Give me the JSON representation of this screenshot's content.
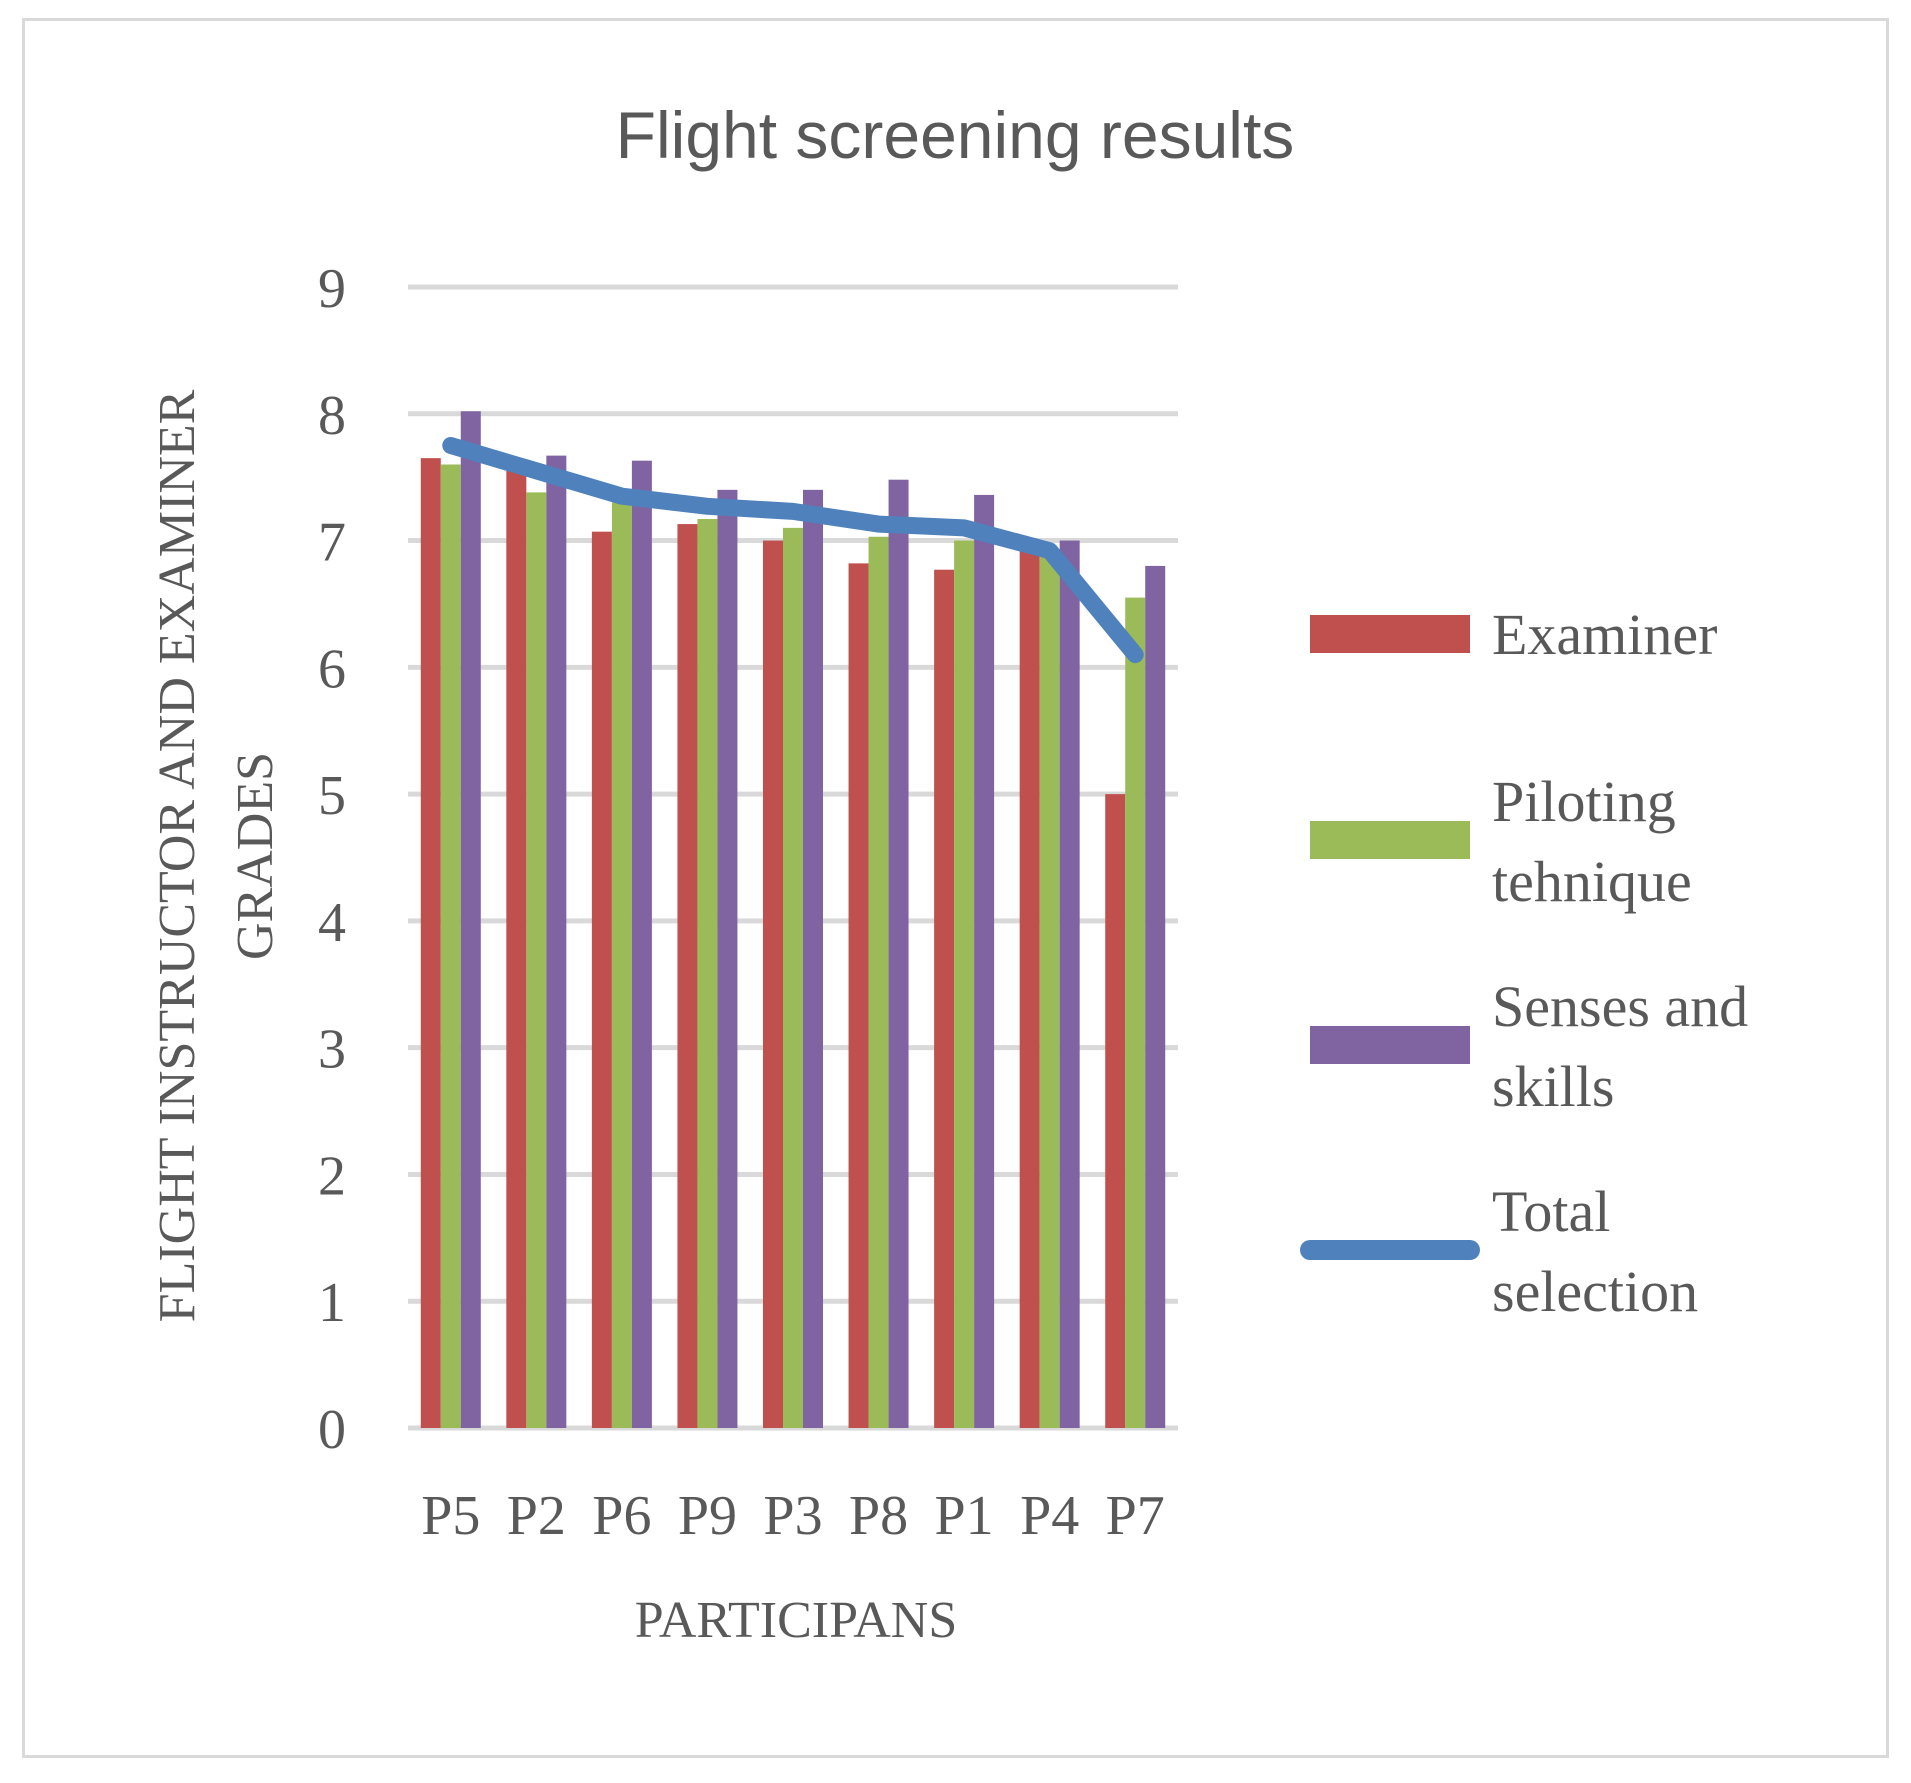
{
  "chart_data": {
    "type": "bar",
    "title": "Flight screening results",
    "xlabel": "PARTICIPANS",
    "ylabel": [
      "FLIGHT INSTRUCTOR AND EXAMINER",
      "GRADES"
    ],
    "ylim": [
      0,
      9
    ],
    "yticks": [
      "0",
      "1",
      "2",
      "3",
      "4",
      "5",
      "6",
      "7",
      "8",
      "9"
    ],
    "grid": true,
    "legend_position": "right",
    "categories": [
      "P5",
      "P2",
      "P6",
      "P9",
      "P3",
      "P8",
      "P1",
      "P4",
      "P7"
    ],
    "series": [
      {
        "name": "Examiner",
        "kind": "bar",
        "color": "#c0504d",
        "values": [
          7.65,
          7.55,
          7.07,
          7.13,
          7.0,
          6.82,
          6.77,
          6.95,
          5.0
        ]
      },
      {
        "name": "Piloting tehnique",
        "kind": "bar",
        "color": "#9bbb59",
        "values": [
          7.6,
          7.38,
          7.3,
          7.17,
          7.1,
          7.03,
          7.0,
          6.88,
          6.55
        ]
      },
      {
        "name": "Senses and skills",
        "kind": "bar",
        "color": "#8064a2",
        "values": [
          8.02,
          7.67,
          7.63,
          7.4,
          7.4,
          7.48,
          7.36,
          7.0,
          6.8
        ]
      },
      {
        "name": "Total selection",
        "kind": "line",
        "color": "#4f81bd",
        "values": [
          7.75,
          7.55,
          7.35,
          7.27,
          7.23,
          7.13,
          7.1,
          6.92,
          6.1
        ]
      }
    ],
    "legend_lines": [
      [
        "Examiner"
      ],
      [
        "Piloting",
        "tehnique"
      ],
      [
        "Senses and",
        "skills"
      ],
      [
        "Total",
        "selection"
      ]
    ]
  }
}
